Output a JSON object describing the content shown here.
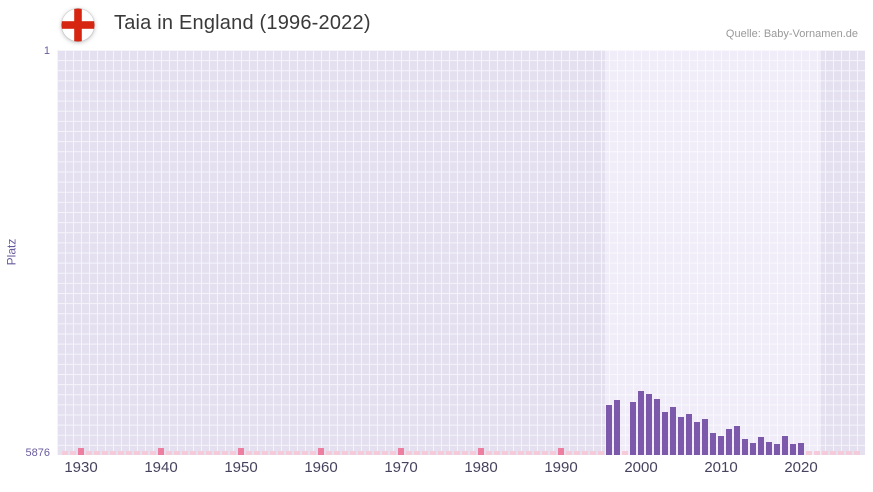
{
  "header": {
    "title": "Taia in England (1996-2022)",
    "source": "Quelle: Baby-Vornamen.de"
  },
  "axis": {
    "y_title": "Platz",
    "y_top_label": "1",
    "y_bottom_label": "5876"
  },
  "colors": {
    "title_text": "#3a3a3a",
    "source_text": "#999999",
    "plot_bg": "#e4e0f0",
    "highlight_bg": "#f0edf8",
    "grid_line": "#ffffff",
    "bar": "#7c59ab",
    "stub": "#f6cbd9",
    "stub_decade": "#ee7ea0",
    "axis_text": "#6a5b9e",
    "xtick_text": "#47435e",
    "flag_red": "#d62612"
  },
  "chart_data": {
    "type": "bar",
    "title": "Taia in England (1996-2022)",
    "xlabel": "",
    "ylabel": "Platz",
    "y_axis_inverted": true,
    "ylim": [
      1,
      5876
    ],
    "x_range": [
      1927,
      2028
    ],
    "x_ticks": [
      1930,
      1940,
      1950,
      1960,
      1970,
      1980,
      1990,
      2000,
      2010,
      2020
    ],
    "highlight_bands": [
      [
        1995.5,
        2022.5
      ]
    ],
    "grid": true,
    "legend": false,
    "unranked_years_marked_with_pink_stub": true,
    "years": [
      1996,
      1997,
      1998,
      1999,
      2000,
      2001,
      2002,
      2003,
      2004,
      2005,
      2006,
      2007,
      2008,
      2009,
      2010,
      2011,
      2012,
      2013,
      2014,
      2015,
      2016,
      2017,
      2018,
      2019,
      2020,
      2021,
      2022
    ],
    "ranks": [
      5150,
      5080,
      null,
      5100,
      4950,
      4990,
      5060,
      5250,
      5180,
      5320,
      5280,
      5400,
      5360,
      5550,
      5600,
      5500,
      5450,
      5650,
      5700,
      5620,
      5680,
      5720,
      5600,
      5720,
      5700,
      null,
      null
    ]
  }
}
